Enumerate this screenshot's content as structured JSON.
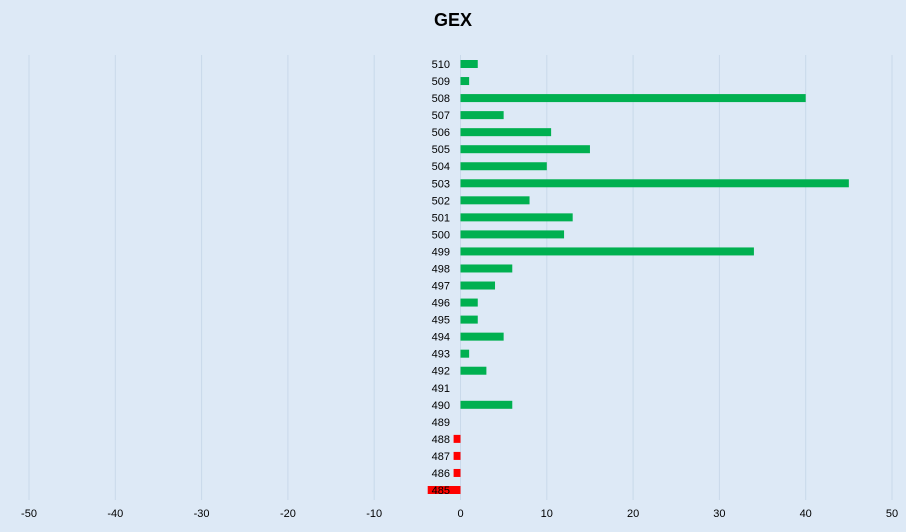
{
  "chart_data": {
    "type": "bar",
    "orientation": "horizontal",
    "title": "GEX",
    "xlabel": "",
    "ylabel": "",
    "xlim": [
      -50,
      50
    ],
    "x_ticks": [
      -50,
      -40,
      -30,
      -20,
      -10,
      0,
      10,
      20,
      30,
      40,
      50
    ],
    "grid": "vertical",
    "legend": "none",
    "categories": [
      "510",
      "509",
      "508",
      "507",
      "506",
      "505",
      "504",
      "503",
      "502",
      "501",
      "500",
      "499",
      "498",
      "497",
      "496",
      "495",
      "494",
      "493",
      "492",
      "491",
      "490",
      "489",
      "488",
      "487",
      "486",
      "485"
    ],
    "values": [
      2,
      1,
      40,
      5,
      10.5,
      15,
      10,
      45,
      8,
      13,
      12,
      34,
      6,
      4,
      2,
      2,
      5,
      1,
      3,
      0,
      6,
      0,
      -0.8,
      -0.8,
      -0.8,
      -3.8
    ],
    "colors": {
      "positive": "#00b050",
      "negative": "#ff0000",
      "background": "#dde9f6",
      "grid": "#c9d9ea"
    }
  }
}
